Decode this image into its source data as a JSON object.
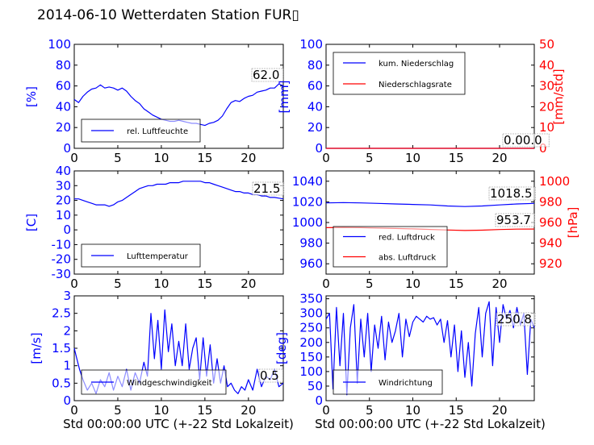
{
  "figure": {
    "title": "2014-06-10 Wetterdaten Station FUR▯",
    "xlabel": "Std 00:00:00 UTC (+-22 Std Lokalzeit)"
  },
  "colors": {
    "primary": "#0000ff",
    "secondary": "#ff0000",
    "axes": "#000000"
  },
  "chart_data": [
    {
      "type": "line",
      "xlim": [
        0,
        24
      ],
      "ylim": [
        0,
        100
      ],
      "ylabel": "[%]",
      "yticks": [
        0,
        20,
        40,
        60,
        80,
        100
      ],
      "xticks": [
        0,
        5,
        10,
        15,
        20
      ],
      "annotation": "62.0",
      "legend": [
        {
          "name": "rel. Luftfeuchte",
          "color": "#0000ff"
        }
      ],
      "series": [
        {
          "name": "rel. Luftfeuchte",
          "color": "#0000ff",
          "x": [
            0,
            0.5,
            1,
            1.5,
            2,
            2.5,
            3,
            3.5,
            4,
            4.5,
            5,
            5.5,
            6,
            6.5,
            7,
            7.5,
            8,
            8.5,
            9,
            9.5,
            10,
            10.5,
            11,
            11.5,
            12,
            12.5,
            13,
            13.5,
            14,
            14.5,
            15,
            15.5,
            16,
            16.5,
            17,
            17.5,
            18,
            18.5,
            19,
            19.5,
            20,
            20.5,
            21,
            21.5,
            22,
            22.5,
            23,
            23.5,
            24
          ],
          "y": [
            47,
            44,
            50,
            54,
            57,
            58,
            61,
            58,
            59,
            58,
            56,
            58,
            55,
            50,
            46,
            43,
            38,
            35,
            32,
            30,
            28,
            27,
            26,
            26,
            27,
            26,
            25,
            24,
            24,
            23,
            22,
            24,
            25,
            27,
            31,
            38,
            44,
            46,
            45,
            48,
            50,
            51,
            54,
            55,
            56,
            58,
            58,
            62,
            60
          ]
        }
      ]
    },
    {
      "type": "line",
      "xlim": [
        0,
        24
      ],
      "ylim": [
        0,
        100
      ],
      "ylabel": "[mm]",
      "yticks": [
        0,
        20,
        40,
        60,
        80,
        100
      ],
      "xticks": [
        0,
        5,
        10,
        15,
        20
      ],
      "annotation": "0.00.0",
      "y2lim": [
        0,
        50
      ],
      "y2label": "[mm/std]",
      "y2ticks": [
        0,
        10,
        20,
        30,
        40,
        50
      ],
      "legend": [
        {
          "name": "kum. Niederschlag",
          "color": "#0000ff"
        },
        {
          "name": "Niederschlagsrate",
          "color": "#ff0000"
        }
      ],
      "series": [
        {
          "name": "kum. Niederschlag",
          "color": "#0000ff",
          "axis": "left",
          "x": [
            0,
            24
          ],
          "y": [
            0,
            0
          ]
        },
        {
          "name": "Niederschlagsrate",
          "color": "#ff0000",
          "axis": "right",
          "x": [
            0,
            24
          ],
          "y": [
            0,
            0
          ]
        }
      ]
    },
    {
      "type": "line",
      "xlim": [
        0,
        24
      ],
      "ylim": [
        -30,
        40
      ],
      "ylabel": "[C]",
      "yticks": [
        -30,
        -20,
        -10,
        0,
        10,
        20,
        30,
        40
      ],
      "xticks": [
        0,
        5,
        10,
        15,
        20
      ],
      "annotation": "21.5",
      "legend": [
        {
          "name": "Lufttemperatur",
          "color": "#0000ff"
        }
      ],
      "series": [
        {
          "name": "Lufttemperatur",
          "color": "#0000ff",
          "x": [
            0,
            0.5,
            1,
            1.5,
            2,
            2.5,
            3,
            3.5,
            4,
            4.5,
            5,
            5.5,
            6,
            6.5,
            7,
            7.5,
            8,
            8.5,
            9,
            9.5,
            10,
            10.5,
            11,
            11.5,
            12,
            12.5,
            13,
            13.5,
            14,
            14.5,
            15,
            15.5,
            16,
            16.5,
            17,
            17.5,
            18,
            18.5,
            19,
            19.5,
            20,
            20.5,
            21,
            21.5,
            22,
            22.5,
            23,
            23.5,
            24
          ],
          "y": [
            21,
            21,
            20,
            19,
            18,
            17,
            17,
            17,
            16,
            17,
            19,
            20,
            22,
            24,
            26,
            28,
            29,
            30,
            30,
            31,
            31,
            31,
            32,
            32,
            32,
            33,
            33,
            33,
            33,
            33,
            32,
            32,
            31,
            30,
            29,
            28,
            27,
            26,
            26,
            25,
            25,
            24,
            24,
            23,
            23,
            22,
            22,
            21.5,
            21
          ]
        }
      ]
    },
    {
      "type": "line",
      "xlim": [
        0,
        24
      ],
      "ylim": [
        950,
        1050
      ],
      "ylabel": "",
      "yticks": [
        960,
        980,
        1000,
        1020,
        1040
      ],
      "xticks": [
        0,
        5,
        10,
        15,
        20
      ],
      "annotation": "1018.5",
      "annotation2": "953.7",
      "y2lim": [
        910,
        1010
      ],
      "y2label": "[hPa]",
      "y2ticks": [
        920,
        940,
        960,
        980,
        1000
      ],
      "legend": [
        {
          "name": "red. Luftdruck",
          "color": "#0000ff"
        },
        {
          "name": "abs. Luftdruck",
          "color": "#ff0000"
        }
      ],
      "series": [
        {
          "name": "red. Luftdruck",
          "color": "#0000ff",
          "axis": "left",
          "x": [
            0,
            2,
            4,
            6,
            8,
            10,
            12,
            14,
            16,
            18,
            20,
            22,
            24
          ],
          "y": [
            1019,
            1019.3,
            1019,
            1018.5,
            1018,
            1017.5,
            1017,
            1016,
            1015.5,
            1016,
            1017,
            1018,
            1018.5
          ]
        },
        {
          "name": "abs. Luftdruck",
          "color": "#ff0000",
          "axis": "right",
          "x": [
            0,
            2,
            4,
            6,
            8,
            10,
            12,
            14,
            16,
            18,
            20,
            22,
            24
          ],
          "y": [
            955,
            955.2,
            955,
            954.6,
            954.2,
            953.8,
            953.3,
            952.7,
            952.3,
            952.6,
            953.2,
            953.6,
            953.7
          ]
        }
      ]
    },
    {
      "type": "line",
      "xlim": [
        0,
        24
      ],
      "ylim": [
        0,
        3
      ],
      "ylabel": "[m/s]",
      "yticks": [
        0,
        0.5,
        1,
        1.5,
        2,
        2.5,
        3
      ],
      "xticks": [
        0,
        5,
        10,
        15,
        20
      ],
      "annotation": "0.5",
      "legend": [
        {
          "name": "Windgeschwindigkeit",
          "color": "#0000ff"
        }
      ],
      "series": [
        {
          "name": "Windgeschwindigkeit",
          "color": "#0000ff",
          "x": [
            0,
            0.3,
            0.6,
            1,
            1.5,
            2,
            2.5,
            3,
            3.5,
            4,
            4.5,
            5,
            5.5,
            6,
            6.5,
            7,
            7.5,
            8,
            8.4,
            8.8,
            9.2,
            9.6,
            10,
            10.4,
            10.8,
            11.2,
            11.6,
            12,
            12.4,
            12.8,
            13.2,
            13.6,
            14,
            14.4,
            14.8,
            15.2,
            15.6,
            16,
            16.4,
            16.8,
            17.2,
            17.6,
            18,
            18.4,
            18.8,
            19.2,
            19.6,
            20,
            20.5,
            21,
            21.5,
            22,
            22.5,
            23,
            23.5,
            24
          ],
          "y": [
            1.5,
            1.2,
            0.9,
            0.6,
            0.3,
            0.5,
            0.2,
            0.6,
            0.4,
            0.8,
            0.3,
            0.7,
            0.4,
            0.9,
            0.3,
            0.8,
            0.5,
            1.1,
            0.7,
            2.5,
            1.2,
            2.3,
            0.9,
            2.6,
            1.4,
            2.2,
            1.0,
            1.7,
            1.0,
            2.2,
            0.9,
            1.5,
            1.8,
            0.6,
            1.8,
            0.7,
            1.6,
            0.5,
            1.2,
            0.5,
            1.0,
            0.4,
            0.5,
            0.3,
            0.2,
            0.4,
            0.3,
            0.6,
            0.3,
            0.9,
            0.4,
            0.7,
            0.6,
            0.9,
            0.4,
            0.5
          ]
        }
      ]
    },
    {
      "type": "line",
      "xlim": [
        0,
        24
      ],
      "ylim": [
        0,
        360
      ],
      "ylabel": "[deg]",
      "yticks": [
        0,
        50,
        100,
        150,
        200,
        250,
        300,
        350
      ],
      "xticks": [
        0,
        5,
        10,
        15,
        20
      ],
      "annotation": "250.8",
      "legend": [
        {
          "name": "Windrichtung",
          "color": "#0000ff"
        }
      ],
      "series": [
        {
          "name": "Windrichtung",
          "color": "#0000ff",
          "x": [
            0,
            0.4,
            0.8,
            1.2,
            1.6,
            2,
            2.4,
            2.8,
            3.2,
            3.6,
            4,
            4.4,
            4.8,
            5.2,
            5.6,
            6,
            6.4,
            6.8,
            7.2,
            7.6,
            8,
            8.4,
            8.8,
            9.2,
            9.6,
            10,
            10.4,
            10.8,
            11.2,
            11.6,
            12,
            12.4,
            12.8,
            13.2,
            13.6,
            14,
            14.4,
            14.8,
            15.2,
            15.6,
            16,
            16.4,
            16.8,
            17.2,
            17.6,
            18,
            18.4,
            18.8,
            19.2,
            19.6,
            20,
            20.4,
            20.8,
            21.2,
            21.6,
            22,
            22.4,
            22.8,
            23.2,
            23.6,
            24
          ],
          "y": [
            280,
            300,
            40,
            320,
            120,
            300,
            20,
            250,
            330,
            60,
            280,
            150,
            300,
            100,
            260,
            180,
            290,
            140,
            270,
            200,
            240,
            300,
            150,
            280,
            220,
            270,
            290,
            280,
            270,
            290,
            280,
            285,
            260,
            280,
            200,
            275,
            150,
            260,
            100,
            240,
            80,
            200,
            50,
            230,
            320,
            150,
            300,
            340,
            120,
            320,
            200,
            330,
            280,
            310,
            250,
            320,
            260,
            300,
            90,
            280,
            250
          ]
        }
      ]
    }
  ]
}
